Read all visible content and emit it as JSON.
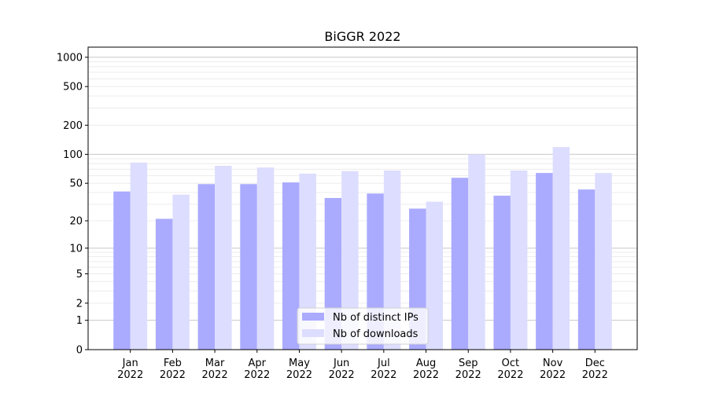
{
  "chart_data": {
    "type": "bar",
    "title": "BiGGR 2022",
    "xlabel": "",
    "ylabel": "",
    "yscale": "log10(1+y)",
    "ylim": [
      0,
      1270
    ],
    "grid": true,
    "legend_position": "lower-center",
    "categories": [
      "Jan\n2022",
      "Feb\n2022",
      "Mar\n2022",
      "Apr\n2022",
      "May\n2022",
      "Jun\n2022",
      "Jul\n2022",
      "Aug\n2022",
      "Sep\n2022",
      "Oct\n2022",
      "Nov\n2022",
      "Dec\n2022"
    ],
    "yticks": [
      0,
      1,
      2,
      5,
      10,
      20,
      50,
      100,
      200,
      500,
      1000
    ],
    "ytick_labels": [
      "0",
      "1",
      "2",
      "5",
      "10",
      "20",
      "50",
      "100",
      "200",
      "500",
      "1000"
    ],
    "series": [
      {
        "name": "Nb of distinct IPs",
        "color": "#aaaaff",
        "values": [
          41,
          21,
          49,
          49,
          51,
          35,
          39,
          27,
          57,
          37,
          64,
          43
        ]
      },
      {
        "name": "Nb of downloads",
        "color": "#ddddff",
        "values": [
          82,
          38,
          76,
          73,
          63,
          67,
          68,
          32,
          100,
          68,
          119,
          64
        ]
      }
    ]
  }
}
